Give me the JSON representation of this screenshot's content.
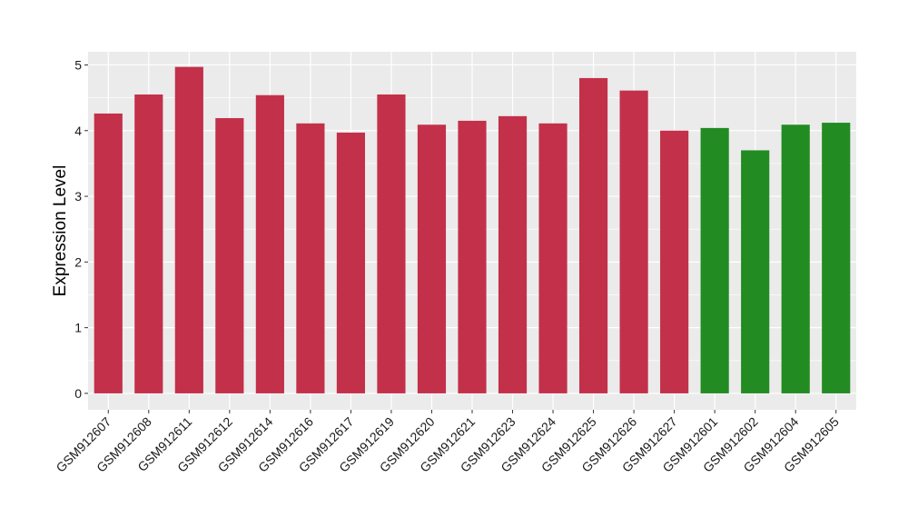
{
  "chart_data": {
    "type": "bar",
    "ylabel": "Expression Level",
    "xlabel": "",
    "ylim": [
      -0.25,
      5.2
    ],
    "yticks": [
      0,
      1,
      2,
      3,
      4,
      5
    ],
    "grid": true,
    "categories": [
      "GSM912607",
      "GSM912608",
      "GSM912611",
      "GSM912612",
      "GSM912614",
      "GSM912616",
      "GSM912617",
      "GSM912619",
      "GSM912620",
      "GSM912621",
      "GSM912623",
      "GSM912624",
      "GSM912625",
      "GSM912626",
      "GSM912627",
      "GSM912601",
      "GSM912602",
      "GSM912604",
      "GSM912605"
    ],
    "values": [
      4.26,
      4.55,
      4.97,
      4.19,
      4.54,
      4.11,
      3.97,
      4.55,
      4.09,
      4.15,
      4.22,
      4.11,
      4.8,
      4.61,
      4.0,
      4.04,
      3.7,
      4.09,
      4.12
    ],
    "groups": [
      "a",
      "a",
      "a",
      "a",
      "a",
      "a",
      "a",
      "a",
      "a",
      "a",
      "a",
      "a",
      "a",
      "a",
      "a",
      "b",
      "b",
      "b",
      "b"
    ],
    "colors": {
      "a": "#c3304a",
      "b": "#228b22"
    },
    "panel_background": "#ebebeb",
    "grid_color": "#ffffff"
  }
}
